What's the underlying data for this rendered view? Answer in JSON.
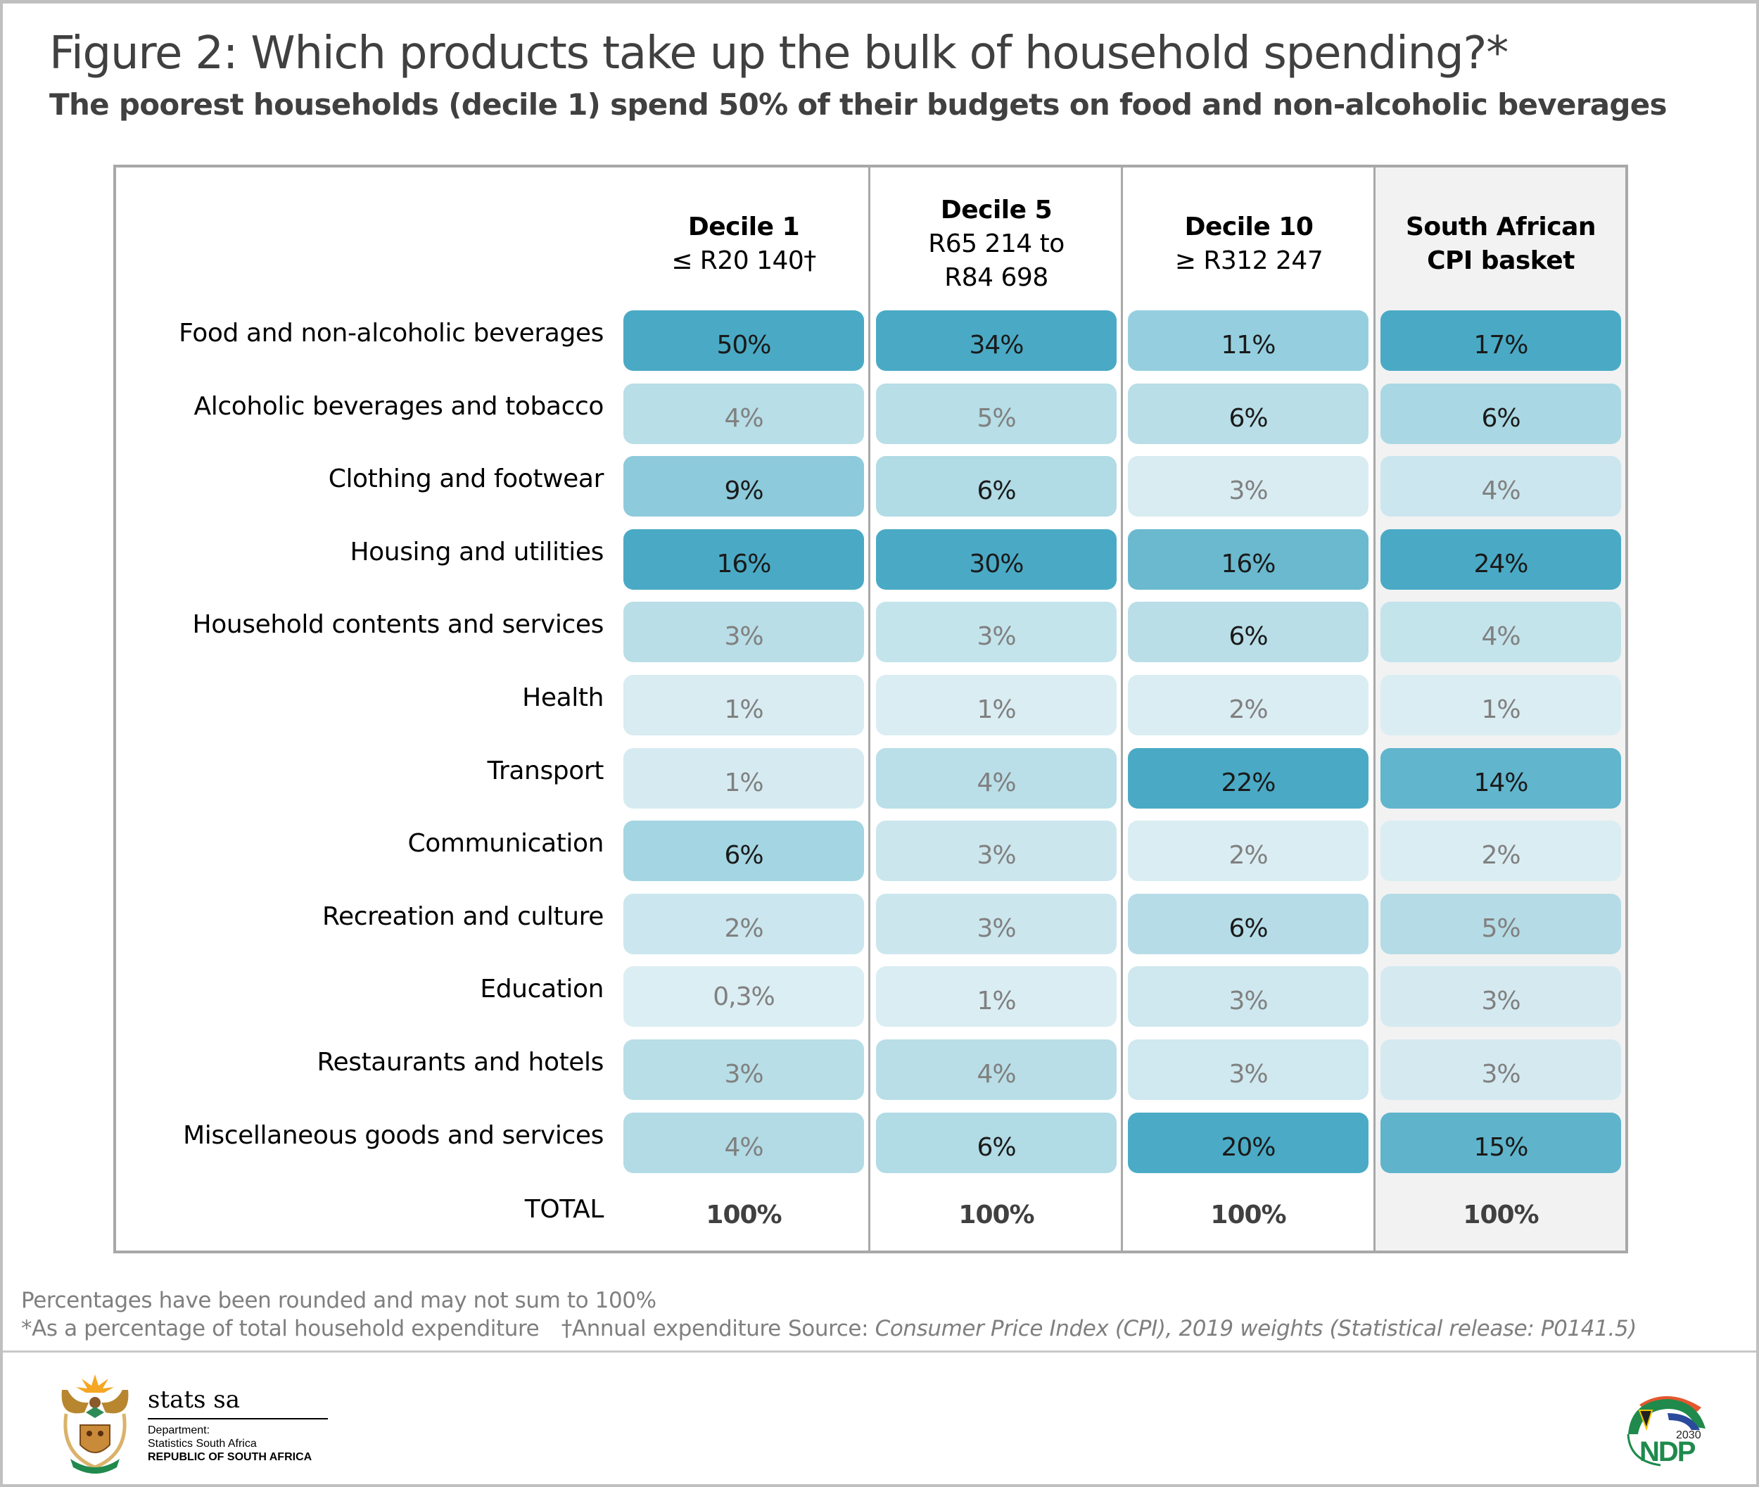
{
  "header": {
    "title": "Figure 2: Which products take up the bulk of household spending?*",
    "subtitle": "The poorest households (decile 1) spend 50% of their budgets on food and non-alcoholic beverages"
  },
  "chart_data": {
    "type": "table",
    "title": "Figure 2: Which products take up the bulk of household spending?*",
    "subtitle": "The poorest households (decile 1) spend 50% of their budgets on food and non-alcoholic beverages",
    "columns": [
      {
        "name": "Decile 1",
        "sub": "≤ R20 140†"
      },
      {
        "name": "Decile 5",
        "sub": "R65 214 to R84 698",
        "sub_lines": [
          "R65 214 to",
          "R84 698"
        ]
      },
      {
        "name": "Decile 10",
        "sub": "≥ R312 247"
      },
      {
        "name": "South African CPI basket",
        "name_lines": [
          "South African",
          "CPI basket"
        ],
        "sub": ""
      }
    ],
    "categories": [
      "Food and non-alcoholic beverages",
      "Alcoholic beverages and tobacco",
      "Clothing and footwear",
      "Housing and utilities",
      "Household contents and services",
      "Health",
      "Transport",
      "Communication",
      "Recreation and culture",
      "Education",
      "Restaurants and hotels",
      "Miscellaneous goods and services"
    ],
    "series": [
      {
        "name": "Decile 1",
        "values": [
          50,
          4,
          9,
          16,
          3,
          1,
          1,
          6,
          2,
          0.3,
          3,
          4
        ],
        "labels": [
          "50%",
          "4%",
          "9%",
          "16%",
          "3%",
          "1%",
          "1%",
          "6%",
          "2%",
          "0,3%",
          "3%",
          "4%"
        ],
        "fills": [
          "#4aaac5",
          "#b8dee7",
          "#8dcadb",
          "#4aaac5",
          "#b9dee7",
          "#d8ecf2",
          "#d6ebf1",
          "#a4d5e2",
          "#cbe6ee",
          "#dbeef3",
          "#b8dee7",
          "#b3dbe6"
        ]
      },
      {
        "name": "Decile 5",
        "values": [
          34,
          5,
          6,
          30,
          3,
          1,
          4,
          3,
          3,
          1,
          4,
          6
        ],
        "labels": [
          "34%",
          "5%",
          "6%",
          "30%",
          "3%",
          "1%",
          "4%",
          "3%",
          "3%",
          "1%",
          "4%",
          "6%"
        ],
        "fills": [
          "#4aaac5",
          "#b8dee7",
          "#b1dbe5",
          "#4aaac5",
          "#c4e4ec",
          "#daedf3",
          "#badfe8",
          "#cce6ee",
          "#cce6ee",
          "#daedf3",
          "#b9dee7",
          "#b1dbe5"
        ]
      },
      {
        "name": "Decile 10",
        "values": [
          11,
          6,
          3,
          16,
          6,
          2,
          22,
          2,
          6,
          3,
          3,
          20
        ],
        "labels": [
          "11%",
          "6%",
          "3%",
          "16%",
          "6%",
          "2%",
          "22%",
          "2%",
          "6%",
          "3%",
          "3%",
          "20%"
        ],
        "fills": [
          "#95cfdf",
          "#b9dee7",
          "#d9ecf2",
          "#6ab9cf",
          "#b9dee7",
          "#daedf3",
          "#4aaac5",
          "#daedf3",
          "#b6dde7",
          "#cfe8ef",
          "#d0e8ef",
          "#4babc6"
        ]
      },
      {
        "name": "South African CPI basket",
        "values": [
          17,
          6,
          4,
          24,
          4,
          1,
          14,
          2,
          5,
          3,
          3,
          15
        ],
        "labels": [
          "17%",
          "6%",
          "4%",
          "24%",
          "4%",
          "1%",
          "14%",
          "2%",
          "5%",
          "3%",
          "3%",
          "15%"
        ],
        "fills": [
          "#4aaac5",
          "#a9d8e4",
          "#cbe6ee",
          "#4aaac5",
          "#c4e4ec",
          "#daedf3",
          "#61b5cd",
          "#daedf3",
          "#b5dce6",
          "#d4eaf0",
          "#d4eaf0",
          "#5fb4cc"
        ]
      }
    ],
    "total_label": "TOTAL",
    "totals": [
      "100%",
      "100%",
      "100%",
      "100%"
    ],
    "text_colors": {
      "strong": "#1a1a1a",
      "muted": "#808080"
    },
    "color_scale": {
      "low": "#daedf3",
      "high": "#4aaac5"
    }
  },
  "footer": {
    "note1": "Percentages have been rounded and may not sum to 100%",
    "note2": "*As a percentage of total household expenditure",
    "note3": "†Annual expenditure",
    "source_prefix": "Source: ",
    "source_text": "Consumer Price Index (CPI), 2019 weights (Statistical release: P0141.5)"
  },
  "logos": {
    "statssa_word": "stats sa",
    "dept_line1": "Department:",
    "dept_line2": "Statistics South Africa",
    "dept_line3": "REPUBLIC OF SOUTH AFRICA",
    "ndp_year": "2030",
    "ndp_text": "NDP"
  }
}
